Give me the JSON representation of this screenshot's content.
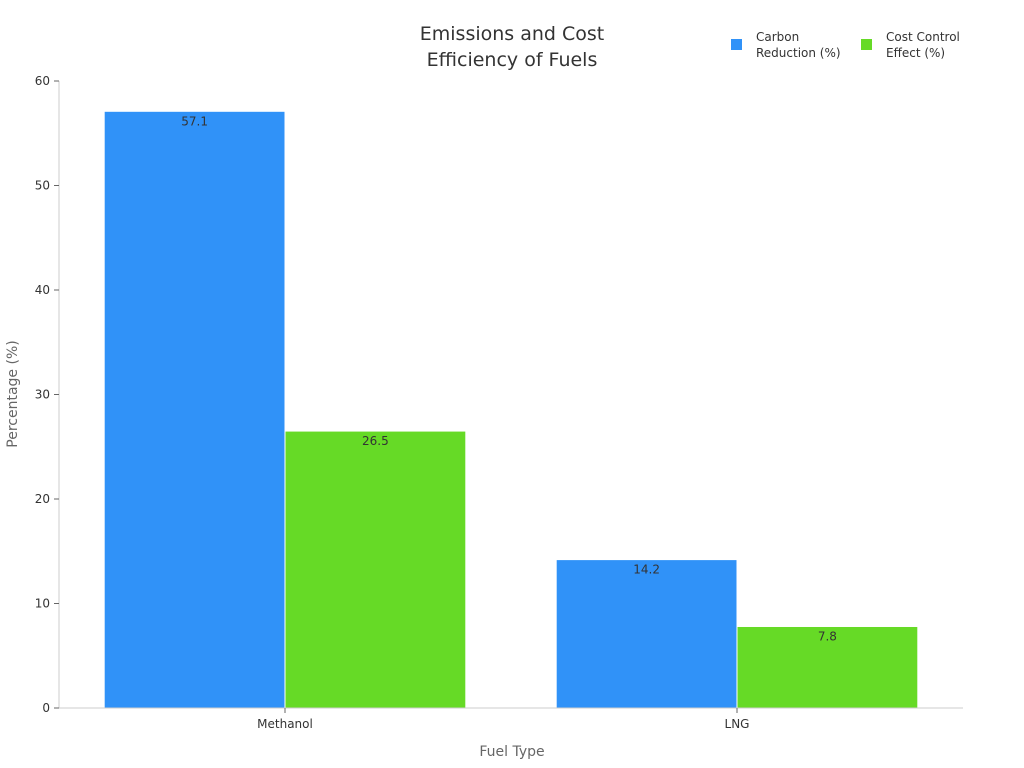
{
  "chart_data": {
    "type": "bar",
    "title": [
      "Emissions and Cost",
      "Efficiency of Fuels"
    ],
    "xlabel": "Fuel Type",
    "ylabel": "Percentage (%)",
    "categories": [
      "Methanol",
      "LNG"
    ],
    "ylim": [
      0,
      60
    ],
    "yticks": [
      0,
      10,
      20,
      30,
      40,
      50,
      60
    ],
    "grid": false,
    "legend_position": "top-right",
    "series": [
      {
        "name": [
          "Carbon",
          "Reduction (%)"
        ],
        "color": "#3092f8",
        "values": [
          57.1,
          14.2
        ],
        "labels": [
          "57.1",
          "14.2"
        ]
      },
      {
        "name": [
          "Cost Control",
          "Effect (%)"
        ],
        "color": "#66da26",
        "values": [
          26.5,
          7.8
        ],
        "labels": [
          "26.5",
          "7.8"
        ]
      }
    ]
  }
}
